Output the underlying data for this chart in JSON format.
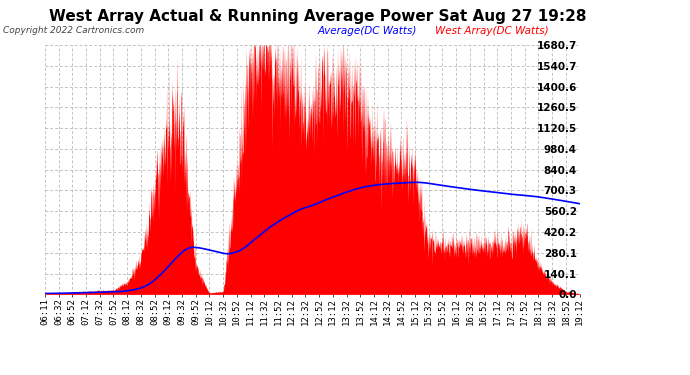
{
  "title": "West Array Actual & Running Average Power Sat Aug 27 19:28",
  "copyright": "Copyright 2022 Cartronics.com",
  "legend_avg": "Average(DC Watts)",
  "legend_west": "West Array(DC Watts)",
  "ylabel_right_ticks": [
    0.0,
    140.1,
    280.1,
    420.2,
    560.2,
    700.3,
    840.4,
    980.4,
    1120.5,
    1260.5,
    1400.6,
    1540.7,
    1680.7
  ],
  "ymax": 1680.7,
  "ymin": 0.0,
  "bg_color": "#ffffff",
  "plot_bg_color": "#ffffff",
  "grid_color": "#aaaaaa",
  "fill_color": "#ff0000",
  "line_color": "#0000ff",
  "title_color": "#000000",
  "title_fontsize": 11,
  "copyright_color": "#444444",
  "legend_avg_color": "#0000ff",
  "legend_west_color": "#ff0000",
  "x_tick_labels": [
    "06:11",
    "06:32",
    "06:52",
    "07:12",
    "07:32",
    "07:52",
    "08:12",
    "08:32",
    "08:52",
    "09:12",
    "09:32",
    "09:52",
    "10:12",
    "10:32",
    "10:52",
    "11:12",
    "11:32",
    "11:52",
    "12:12",
    "12:32",
    "12:52",
    "13:12",
    "13:32",
    "13:52",
    "14:12",
    "14:32",
    "14:52",
    "15:12",
    "15:32",
    "15:52",
    "16:12",
    "16:32",
    "16:52",
    "17:12",
    "17:32",
    "17:52",
    "18:12",
    "18:32",
    "18:52",
    "19:12"
  ]
}
